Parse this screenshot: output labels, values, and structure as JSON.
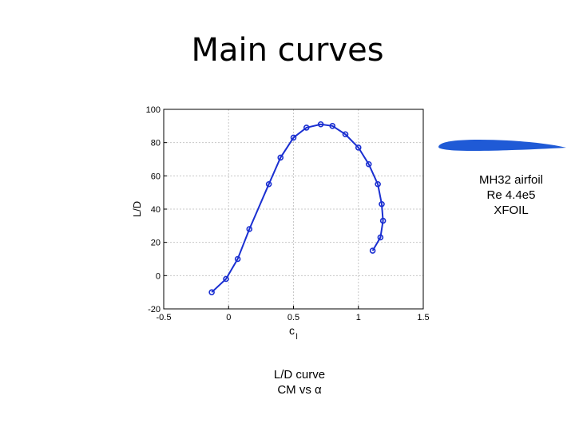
{
  "slide": {
    "title": "Main curves",
    "airfoil_info": [
      "MH32 airfoil",
      "Re 4.4e5",
      "XFOIL"
    ],
    "caption": [
      "L/D curve",
      "CM vs α"
    ]
  },
  "colors": {
    "series": "#1a2fd1",
    "airfoil_fill": "#1f5ad6",
    "grid": "#c8c8c8",
    "axis": "#000000"
  },
  "chart_data": {
    "type": "line",
    "title": "",
    "xlabel": "c",
    "xlabel_subscript": "l",
    "ylabel": "L/D",
    "xlim": [
      -0.5,
      1.5
    ],
    "ylim": [
      -20,
      100
    ],
    "xticks": [
      -0.5,
      0,
      0.5,
      1,
      1.5
    ],
    "xtick_labels": [
      "-0.5",
      "0",
      "0.5",
      "1",
      "1.5"
    ],
    "yticks": [
      -20,
      0,
      20,
      40,
      60,
      80,
      100
    ],
    "ytick_labels": [
      "-20",
      "0",
      "20",
      "40",
      "60",
      "80",
      "100"
    ],
    "grid": true,
    "marker": "circle",
    "series": [
      {
        "x": [
          -0.13,
          -0.02,
          0.07,
          0.16,
          0.31,
          0.4,
          0.5,
          0.6,
          0.71,
          0.8,
          0.9,
          1.0,
          1.08,
          1.15,
          1.18,
          1.19,
          1.17,
          1.11
        ],
        "y": [
          -10,
          -2,
          10,
          28,
          55,
          71,
          83,
          89,
          91,
          90,
          85,
          77,
          67,
          55,
          43,
          33,
          23,
          15
        ]
      }
    ]
  }
}
